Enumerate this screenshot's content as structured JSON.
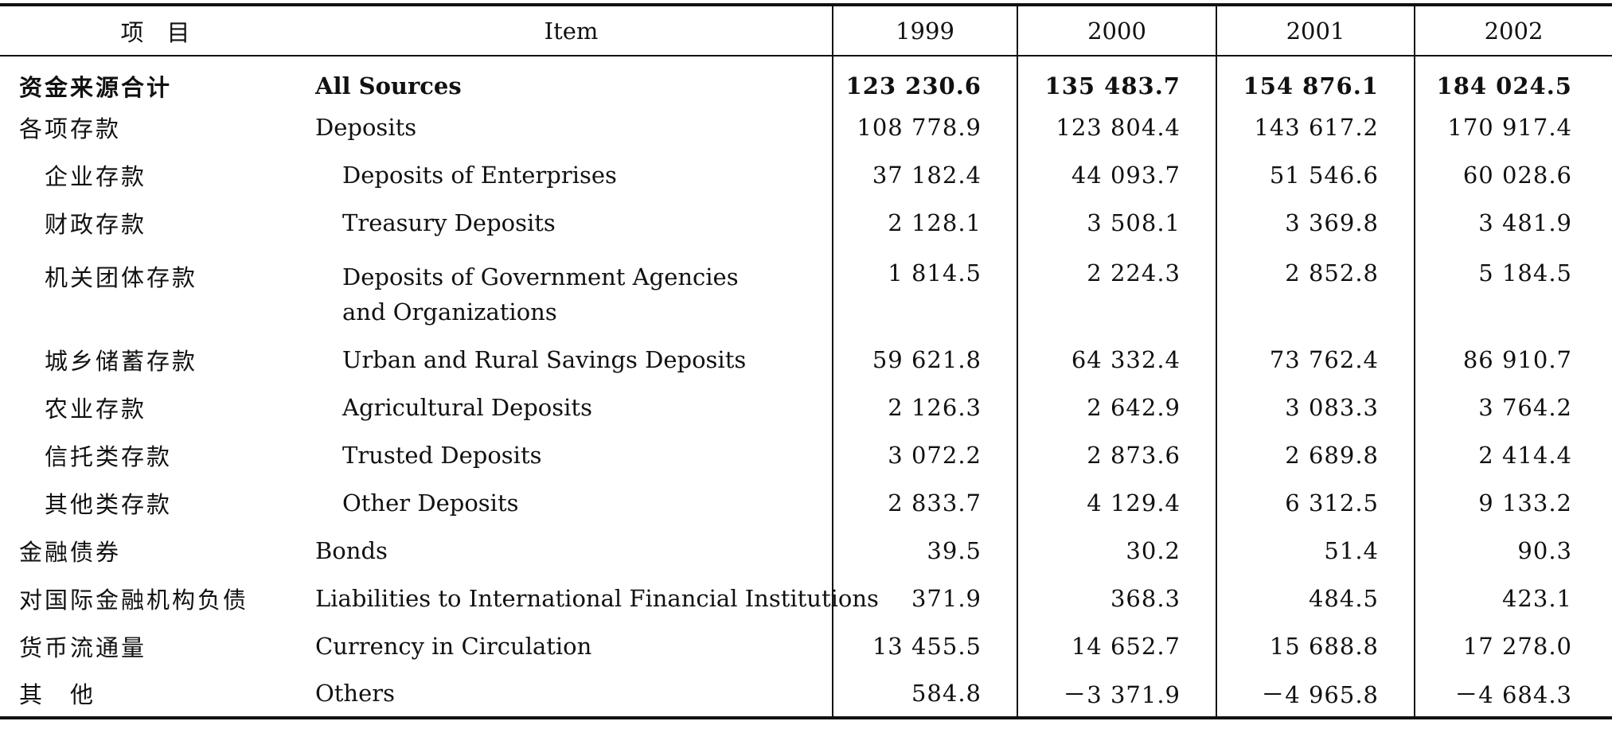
{
  "table": {
    "headers": {
      "item_cn": "项　目",
      "item_en": "Item",
      "years": [
        "1999",
        "2000",
        "2001",
        "2002"
      ]
    },
    "rows": [
      {
        "cn": "资金来源合计",
        "en": "All Sources",
        "values": [
          "123 230.6",
          "135 483.7",
          "154 876.1",
          "184 024.5"
        ],
        "bold": true,
        "indent": false
      },
      {
        "cn": "各项存款",
        "en": "Deposits",
        "values": [
          "108 778.9",
          "123 804.4",
          "143 617.2",
          "170 917.4"
        ],
        "bold": false,
        "indent": false
      },
      {
        "cn": "企业存款",
        "en": "Deposits of Enterprises",
        "values": [
          "37 182.4",
          "44 093.7",
          "51 546.6",
          "60 028.6"
        ],
        "bold": false,
        "indent": true
      },
      {
        "cn": "财政存款",
        "en": "Treasury Deposits",
        "values": [
          "2 128.1",
          "3 508.1",
          "3 369.8",
          "3 481.9"
        ],
        "bold": false,
        "indent": true
      },
      {
        "cn": "机关团体存款",
        "en": "Deposits of Government Agencies and Organizations",
        "values": [
          "1 814.5",
          "2 224.3",
          "2 852.8",
          "5 184.5"
        ],
        "bold": false,
        "indent": true
      },
      {
        "cn": "城乡储蓄存款",
        "en": "Urban and Rural Savings Deposits",
        "values": [
          "59 621.8",
          "64 332.4",
          "73 762.4",
          "86 910.7"
        ],
        "bold": false,
        "indent": true
      },
      {
        "cn": "农业存款",
        "en": "Agricultural Deposits",
        "values": [
          "2 126.3",
          "2 642.9",
          "3 083.3",
          "3 764.2"
        ],
        "bold": false,
        "indent": true
      },
      {
        "cn": "信托类存款",
        "en": "Trusted Deposits",
        "values": [
          "3 072.2",
          "2 873.6",
          "2 689.8",
          "2 414.4"
        ],
        "bold": false,
        "indent": true
      },
      {
        "cn": "其他类存款",
        "en": "Other Deposits",
        "values": [
          "2 833.7",
          "4 129.4",
          "6 312.5",
          "9 133.2"
        ],
        "bold": false,
        "indent": true
      },
      {
        "cn": "金融债券",
        "en": "Bonds",
        "values": [
          "39.5",
          "30.2",
          "51.4",
          "90.3"
        ],
        "bold": false,
        "indent": false
      },
      {
        "cn": "对国际金融机构负债",
        "en": "Liabilities to International Financial Institutions",
        "values": [
          "371.9",
          "368.3",
          "484.5",
          "423.1"
        ],
        "bold": false,
        "indent": false
      },
      {
        "cn": "货币流通量",
        "en": "Currency in Circulation",
        "values": [
          "13 455.5",
          "14 652.7",
          "15 688.8",
          "17 278.0"
        ],
        "bold": false,
        "indent": false
      },
      {
        "cn": "其　他",
        "en": "Others",
        "values": [
          "584.8",
          "－3 371.9",
          "－4 965.8",
          "－4 684.3"
        ],
        "bold": false,
        "indent": false
      }
    ]
  }
}
